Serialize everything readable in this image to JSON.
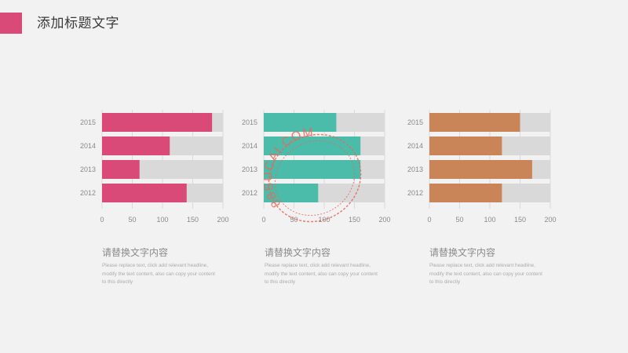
{
  "header": {
    "title": "添加标题文字",
    "accent_color": "#d94a78"
  },
  "chart_data": [
    {
      "type": "bar",
      "orientation": "horizontal",
      "categories": [
        "2015",
        "2014",
        "2013",
        "2012"
      ],
      "values": [
        182,
        112,
        62,
        140
      ],
      "max_track": 200,
      "xlim": [
        0,
        200
      ],
      "xticks": [
        "0",
        "50",
        "100",
        "150",
        "200"
      ],
      "color": "#d94a78",
      "track_color": "#d9d9d9"
    },
    {
      "type": "bar",
      "orientation": "horizontal",
      "categories": [
        "2015",
        "2014",
        "2013",
        "2012"
      ],
      "values": [
        120,
        160,
        160,
        90
      ],
      "max_track": 200,
      "xlim": [
        0,
        200
      ],
      "xticks": [
        "0",
        "50",
        "100",
        "150",
        "200"
      ],
      "color": "#4cbcaa",
      "track_color": "#d9d9d9"
    },
    {
      "type": "bar",
      "orientation": "horizontal",
      "categories": [
        "2015",
        "2014",
        "2013",
        "2012"
      ],
      "values": [
        150,
        120,
        170,
        120
      ],
      "max_track": 200,
      "xlim": [
        0,
        200
      ],
      "xticks": [
        "0",
        "50",
        "100",
        "150",
        "200"
      ],
      "color": "#c98458",
      "track_color": "#d9d9d9"
    }
  ],
  "captions": [
    {
      "title": "请替换文字内容",
      "lines": [
        "Please replace text, click add relevant headline,",
        "modify the text content, also can copy your content",
        "to this directly"
      ]
    },
    {
      "title": "请替换文字内容",
      "lines": [
        "Please replace text, click add relevant headline,",
        "modify the text content, also can copy your content",
        "to this directly"
      ]
    },
    {
      "title": "请替换文字内容",
      "lines": [
        "Please replace text, click add relevant headline,",
        "modify the text content, also can copy your content",
        "to this directly"
      ]
    }
  ],
  "watermark": {
    "text": "88SUCAI.COM",
    "color": "#e8695a"
  }
}
